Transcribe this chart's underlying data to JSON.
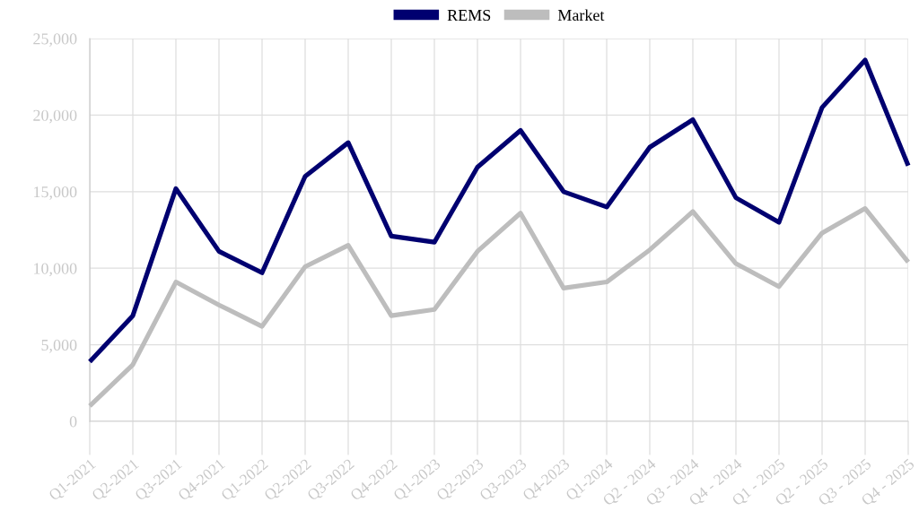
{
  "chart_data": {
    "type": "line",
    "categories": [
      "Q1-2021",
      "Q2-2021",
      "Q3-2021",
      "Q4-2021",
      "Q1-2022",
      "Q2-2022",
      "Q3-2022",
      "Q4-2022",
      "Q1-2023",
      "Q2-2023",
      "Q3-2023",
      "Q4-2023",
      "Q1-2024",
      "Q2 - 2024",
      "Q3 - 2024",
      "Q4 - 2024",
      "Q1 - 2025",
      "Q2 - 2025",
      "Q3 - 2025",
      "Q4 - 2025"
    ],
    "series": [
      {
        "name": "REMS",
        "color": "#000070",
        "values": [
          3900,
          6900,
          15200,
          11100,
          9700,
          16000,
          18200,
          12100,
          11700,
          16600,
          19000,
          15000,
          14000,
          17900,
          19700,
          14600,
          13000,
          20500,
          23600,
          16700
        ]
      },
      {
        "name": "Market",
        "color": "#bdbdbd",
        "values": [
          1000,
          3700,
          9100,
          7600,
          6200,
          10100,
          11500,
          6900,
          7300,
          11100,
          13600,
          8700,
          9100,
          11200,
          13700,
          10300,
          8800,
          12300,
          13900,
          10400
        ]
      }
    ],
    "ylim": [
      0,
      25000
    ],
    "yticks": [
      0,
      {
        "value": 5000,
        "label": "5,000"
      },
      {
        "value": 10000,
        "label": "10,000"
      },
      {
        "value": 15000,
        "label": "15,000"
      },
      {
        "value": 20000,
        "label": "20,000"
      },
      {
        "value": 25000,
        "label": "25,000"
      }
    ],
    "grid": true,
    "legend": "top",
    "marker": "none",
    "line_style": "solid"
  }
}
